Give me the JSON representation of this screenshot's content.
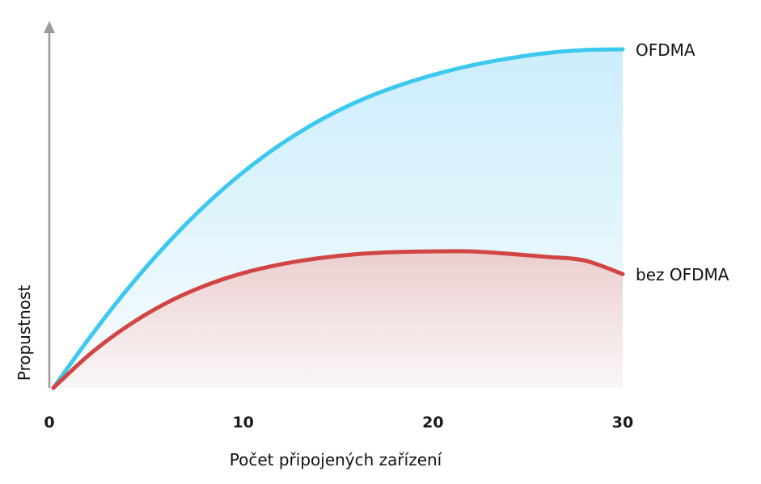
{
  "chart_data": {
    "type": "area",
    "title": "",
    "xlabel": "Počet připojených zařízení",
    "ylabel": "Propustnost",
    "xlim": [
      0,
      30
    ],
    "ylim": [
      0,
      100
    ],
    "x_ticks": [
      "0",
      "10",
      "20",
      "30"
    ],
    "y_ticks": [],
    "grid": false,
    "legend": "inline-right",
    "series": [
      {
        "name": "OFDMA",
        "color": "#3cc8ef",
        "fill_color": "#d2effb",
        "x": [
          0,
          2,
          4,
          6,
          8,
          10,
          12,
          14,
          16,
          18,
          20,
          22,
          24,
          26,
          28,
          30
        ],
        "y": [
          0,
          15.5,
          29.8,
          42.6,
          53.9,
          63.7,
          72.0,
          78.9,
          84.5,
          88.9,
          92.4,
          95.2,
          97.3,
          98.9,
          99.8,
          100
        ]
      },
      {
        "name": "bez OFDMA",
        "color": "#d24545",
        "fill_color": "#f0d6d6",
        "x": [
          0,
          2,
          4,
          6,
          8,
          10,
          12,
          14,
          16,
          18,
          20,
          22,
          24,
          26,
          28,
          30
        ],
        "y": [
          0,
          10.3,
          18.6,
          25.2,
          30.2,
          33.9,
          36.5,
          38.3,
          39.5,
          40.1,
          40.3,
          40.3,
          39.6,
          38.7,
          37.6,
          33.6
        ]
      }
    ]
  }
}
